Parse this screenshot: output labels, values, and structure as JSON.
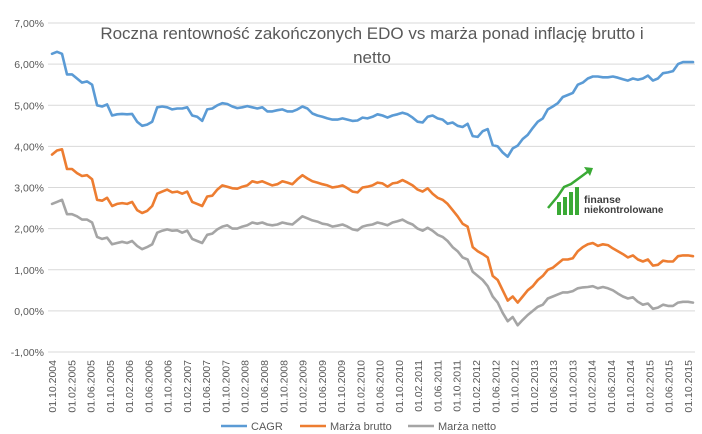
{
  "chart_data": {
    "type": "line",
    "title_lines": [
      "Roczna rentowność zakończonych EDO vs marża ponad inflację brutto i",
      "netto"
    ],
    "xlabel": "",
    "ylabel": "",
    "ylim": [
      -1.0,
      7.0
    ],
    "y_ticks": [
      "-1,00%",
      "0,00%",
      "1,00%",
      "2,00%",
      "3,00%",
      "4,00%",
      "5,00%",
      "6,00%",
      "7,00%"
    ],
    "x_ticks": [
      "01.10.2004",
      "01.02.2005",
      "01.06.2005",
      "01.10.2005",
      "01.02.2006",
      "01.06.2006",
      "01.10.2006",
      "01.02.2007",
      "01.06.2007",
      "01.10.2007",
      "01.02.2008",
      "01.06.2008",
      "01.10.2008",
      "01.02.2009",
      "01.06.2009",
      "01.10.2009",
      "01.02.2010",
      "01.06.2010",
      "01.10.2010",
      "01.02.2011",
      "01.06.2011",
      "01.10.2011",
      "01.02.2012",
      "01.06.2012",
      "01.10.2012",
      "01.02.2013",
      "01.06.2013",
      "01.10.2013",
      "01.02.2014",
      "01.06.2014",
      "01.10.2014",
      "01.02.2015",
      "01.06.2015",
      "01.10.2015"
    ],
    "grid": true,
    "legend_position": "bottom",
    "series": [
      {
        "name": "CAGR",
        "color": "#5B9BD5",
        "values": [
          6.25,
          6.3,
          6.25,
          5.75,
          5.75,
          5.65,
          5.55,
          5.58,
          5.5,
          5.0,
          4.97,
          5.02,
          4.75,
          4.78,
          4.79,
          4.78,
          4.79,
          4.6,
          4.5,
          4.53,
          4.6,
          4.95,
          4.97,
          4.95,
          4.9,
          4.92,
          4.92,
          4.95,
          4.75,
          4.72,
          4.62,
          4.9,
          4.92,
          5.0,
          5.05,
          5.03,
          4.97,
          4.93,
          4.95,
          4.98,
          4.95,
          4.92,
          4.95,
          4.85,
          4.85,
          4.88,
          4.9,
          4.85,
          4.85,
          4.9,
          4.97,
          4.92,
          4.8,
          4.75,
          4.72,
          4.68,
          4.65,
          4.65,
          4.68,
          4.65,
          4.62,
          4.63,
          4.7,
          4.68,
          4.72,
          4.78,
          4.75,
          4.7,
          4.75,
          4.78,
          4.82,
          4.78,
          4.7,
          4.6,
          4.58,
          4.72,
          4.75,
          4.68,
          4.65,
          4.55,
          4.58,
          4.5,
          4.47,
          4.55,
          4.25,
          4.23,
          4.37,
          4.42,
          4.03,
          4.0,
          3.85,
          3.75,
          3.95,
          4.02,
          4.18,
          4.28,
          4.45,
          4.6,
          4.68,
          4.9,
          4.97,
          5.05,
          5.2,
          5.25,
          5.3,
          5.5,
          5.55,
          5.65,
          5.7,
          5.7,
          5.68,
          5.68,
          5.7,
          5.67,
          5.63,
          5.6,
          5.65,
          5.62,
          5.65,
          5.72,
          5.6,
          5.65,
          5.78,
          5.8,
          5.83,
          6.0,
          6.05,
          6.05,
          6.05
        ]
      },
      {
        "name": "Marża brutto",
        "color": "#ED7D31",
        "values": [
          3.8,
          3.9,
          3.93,
          3.45,
          3.45,
          3.35,
          3.28,
          3.3,
          3.2,
          2.7,
          2.68,
          2.75,
          2.55,
          2.6,
          2.62,
          2.6,
          2.65,
          2.45,
          2.38,
          2.43,
          2.55,
          2.85,
          2.9,
          2.95,
          2.88,
          2.9,
          2.85,
          2.9,
          2.65,
          2.6,
          2.55,
          2.78,
          2.8,
          2.95,
          3.05,
          3.02,
          2.98,
          2.97,
          3.02,
          3.05,
          3.15,
          3.12,
          3.15,
          3.1,
          3.05,
          3.08,
          3.15,
          3.12,
          3.08,
          3.2,
          3.3,
          3.22,
          3.15,
          3.12,
          3.08,
          3.05,
          3.0,
          3.02,
          3.05,
          2.98,
          2.9,
          2.88,
          3.0,
          3.02,
          3.05,
          3.12,
          3.1,
          3.02,
          3.1,
          3.12,
          3.18,
          3.12,
          3.05,
          2.95,
          2.9,
          2.98,
          2.85,
          2.75,
          2.7,
          2.6,
          2.45,
          2.3,
          2.12,
          2.05,
          1.55,
          1.45,
          1.38,
          1.3,
          0.85,
          0.75,
          0.5,
          0.25,
          0.35,
          0.2,
          0.35,
          0.5,
          0.6,
          0.75,
          0.85,
          1.0,
          1.05,
          1.15,
          1.25,
          1.25,
          1.28,
          1.45,
          1.55,
          1.62,
          1.65,
          1.58,
          1.62,
          1.6,
          1.52,
          1.45,
          1.38,
          1.3,
          1.35,
          1.25,
          1.2,
          1.25,
          1.1,
          1.12,
          1.22,
          1.2,
          1.2,
          1.33,
          1.35,
          1.35,
          1.33
        ]
      },
      {
        "name": "Marża netto",
        "color": "#A5A5A5",
        "values": [
          2.6,
          2.65,
          2.7,
          2.35,
          2.35,
          2.3,
          2.22,
          2.22,
          2.15,
          1.8,
          1.75,
          1.78,
          1.62,
          1.65,
          1.68,
          1.65,
          1.7,
          1.58,
          1.5,
          1.55,
          1.62,
          1.9,
          1.95,
          1.98,
          1.95,
          1.96,
          1.9,
          1.95,
          1.75,
          1.7,
          1.65,
          1.85,
          1.88,
          1.98,
          2.05,
          2.08,
          2.0,
          2.0,
          2.05,
          2.08,
          2.15,
          2.12,
          2.15,
          2.1,
          2.08,
          2.1,
          2.15,
          2.12,
          2.1,
          2.2,
          2.3,
          2.25,
          2.2,
          2.17,
          2.12,
          2.1,
          2.05,
          2.07,
          2.1,
          2.05,
          1.98,
          1.96,
          2.05,
          2.08,
          2.1,
          2.15,
          2.12,
          2.08,
          2.15,
          2.18,
          2.22,
          2.15,
          2.1,
          2.0,
          1.95,
          2.02,
          1.95,
          1.85,
          1.8,
          1.7,
          1.55,
          1.45,
          1.3,
          1.25,
          0.95,
          0.85,
          0.75,
          0.6,
          0.35,
          0.2,
          -0.05,
          -0.25,
          -0.15,
          -0.35,
          -0.22,
          -0.1,
          0.0,
          0.1,
          0.15,
          0.3,
          0.35,
          0.4,
          0.45,
          0.45,
          0.48,
          0.55,
          0.57,
          0.58,
          0.6,
          0.55,
          0.58,
          0.55,
          0.5,
          0.42,
          0.35,
          0.3,
          0.33,
          0.22,
          0.15,
          0.18,
          0.05,
          0.08,
          0.15,
          0.12,
          0.12,
          0.2,
          0.22,
          0.22,
          0.2
        ]
      }
    ]
  },
  "logo": {
    "line1": "finanse",
    "line2": "niekontrolowane",
    "bar_color": "#3aaa35",
    "arrow_color": "#3aaa35"
  }
}
